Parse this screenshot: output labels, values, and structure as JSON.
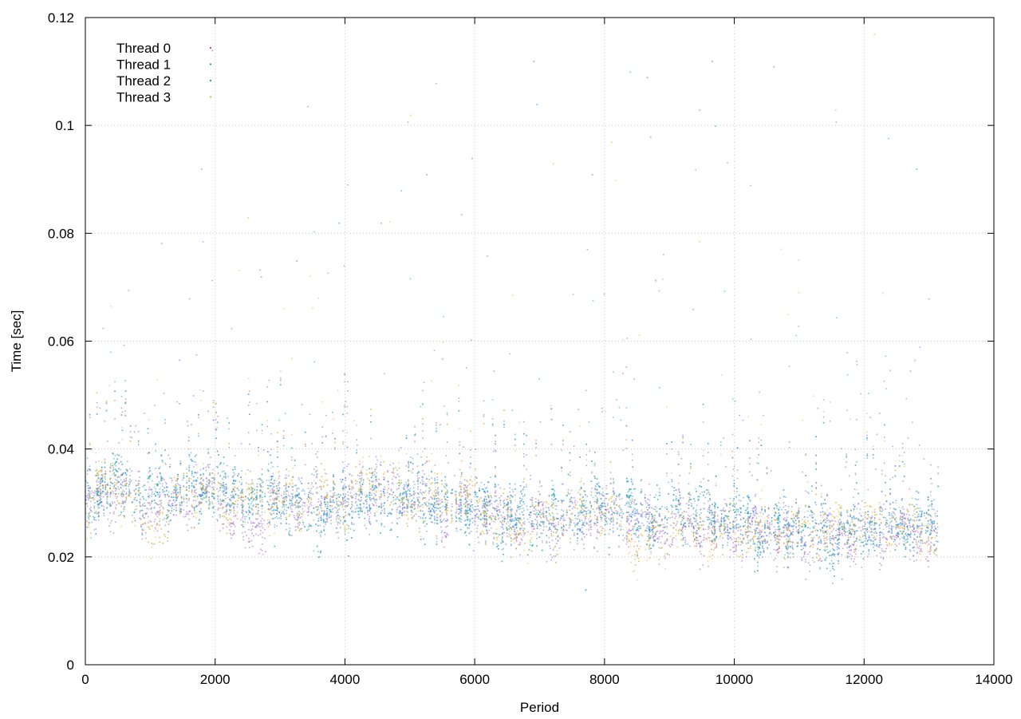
{
  "chart_data": {
    "type": "scatter",
    "title": "",
    "xlabel": "Period",
    "ylabel": "Time [sec]",
    "xlim": [
      0,
      14000
    ],
    "ylim": [
      0,
      0.12
    ],
    "x_ticks": [
      0,
      2000,
      4000,
      6000,
      8000,
      10000,
      12000,
      14000
    ],
    "y_ticks": [
      0,
      0.02,
      0.04,
      0.06,
      0.08,
      0.1,
      0.12
    ],
    "x_tick_labels": [
      "0",
      "2000",
      "4000",
      "6000",
      "8000",
      "10000",
      "12000",
      "14000"
    ],
    "y_tick_labels": [
      "0",
      "0.02",
      "0.04",
      "0.06",
      "0.08",
      "0.1",
      "0.12"
    ],
    "grid": true,
    "legend_position": "top-left",
    "x_range_of_data": [
      0,
      13150
    ],
    "series": [
      {
        "name": "Thread 0",
        "color": "#9457d4",
        "approx_points": [
          [
            0,
            0.03
          ],
          [
            500,
            0.033
          ],
          [
            1000,
            0.03
          ],
          [
            1500,
            0.031
          ],
          [
            2000,
            0.033
          ],
          [
            2500,
            0.024
          ],
          [
            3000,
            0.031
          ],
          [
            3500,
            0.03
          ],
          [
            4000,
            0.031
          ],
          [
            4500,
            0.032
          ],
          [
            5000,
            0.033
          ],
          [
            5500,
            0.029
          ],
          [
            6000,
            0.029
          ],
          [
            6500,
            0.027
          ],
          [
            7000,
            0.027
          ],
          [
            7500,
            0.026
          ],
          [
            8000,
            0.028
          ],
          [
            8500,
            0.027
          ],
          [
            9000,
            0.026
          ],
          [
            9500,
            0.026
          ],
          [
            10000,
            0.025
          ],
          [
            10500,
            0.025
          ],
          [
            11000,
            0.023
          ],
          [
            11500,
            0.024
          ],
          [
            12000,
            0.024
          ],
          [
            12500,
            0.025
          ],
          [
            13000,
            0.024
          ]
        ],
        "outliers": [
          [
            5250,
            0.091
          ],
          [
            6900,
            0.112
          ],
          [
            9650,
            0.112
          ],
          [
            8650,
            0.109
          ],
          [
            10600,
            0.111
          ],
          [
            7800,
            0.091
          ],
          [
            3250,
            0.075
          ],
          [
            2700,
            0.072
          ],
          [
            1950,
            0.114
          ]
        ]
      },
      {
        "name": "Thread 1",
        "color": "#2f8fd8",
        "approx_points": [
          [
            0,
            0.031
          ],
          [
            500,
            0.034
          ],
          [
            1000,
            0.032
          ],
          [
            1500,
            0.033
          ],
          [
            2000,
            0.033
          ],
          [
            2500,
            0.031
          ],
          [
            3000,
            0.032
          ],
          [
            3500,
            0.031
          ],
          [
            4000,
            0.031
          ],
          [
            4500,
            0.031
          ],
          [
            5000,
            0.032
          ],
          [
            5500,
            0.03
          ],
          [
            6000,
            0.03
          ],
          [
            6500,
            0.029
          ],
          [
            7000,
            0.029
          ],
          [
            7500,
            0.028
          ],
          [
            8000,
            0.029
          ],
          [
            8500,
            0.028
          ],
          [
            9000,
            0.028
          ],
          [
            9500,
            0.028
          ],
          [
            10000,
            0.027
          ],
          [
            10500,
            0.026
          ],
          [
            11000,
            0.026
          ],
          [
            11500,
            0.025
          ],
          [
            12000,
            0.025
          ],
          [
            12500,
            0.026
          ],
          [
            13000,
            0.026
          ]
        ],
        "outliers": [
          [
            6950,
            0.104
          ],
          [
            8700,
            0.098
          ],
          [
            3900,
            0.082
          ],
          [
            5950,
            0.094
          ],
          [
            12800,
            0.092
          ],
          [
            7700,
            0.014
          ]
        ]
      },
      {
        "name": "Thread 2",
        "color": "#1fa3b8",
        "approx_points": [
          [
            0,
            0.03
          ],
          [
            500,
            0.034
          ],
          [
            1000,
            0.031
          ],
          [
            1500,
            0.031
          ],
          [
            2000,
            0.034
          ],
          [
            2500,
            0.03
          ],
          [
            3000,
            0.031
          ],
          [
            3500,
            0.026
          ],
          [
            4000,
            0.029
          ],
          [
            4500,
            0.03
          ],
          [
            5000,
            0.031
          ],
          [
            5500,
            0.029
          ],
          [
            6000,
            0.029
          ],
          [
            6500,
            0.026
          ],
          [
            7000,
            0.027
          ],
          [
            7500,
            0.027
          ],
          [
            8000,
            0.031
          ],
          [
            8500,
            0.027
          ],
          [
            9000,
            0.03
          ],
          [
            9500,
            0.03
          ],
          [
            10000,
            0.027
          ],
          [
            10500,
            0.023
          ],
          [
            11000,
            0.026
          ],
          [
            11500,
            0.022
          ],
          [
            12000,
            0.025
          ],
          [
            12500,
            0.026
          ],
          [
            13000,
            0.026
          ]
        ],
        "outliers": [
          [
            7700,
            0.014
          ],
          [
            11650,
            0.016
          ],
          [
            4550,
            0.082
          ],
          [
            9700,
            0.1
          ]
        ]
      },
      {
        "name": "Thread 3",
        "color": "#e0b43a",
        "approx_points": [
          [
            0,
            0.03
          ],
          [
            500,
            0.034
          ],
          [
            1000,
            0.025
          ],
          [
            1500,
            0.032
          ],
          [
            2000,
            0.032
          ],
          [
            2500,
            0.03
          ],
          [
            3000,
            0.031
          ],
          [
            3500,
            0.031
          ],
          [
            4000,
            0.031
          ],
          [
            4500,
            0.035
          ],
          [
            5000,
            0.031
          ],
          [
            5500,
            0.031
          ],
          [
            6000,
            0.031
          ],
          [
            6500,
            0.025
          ],
          [
            7000,
            0.027
          ],
          [
            7500,
            0.027
          ],
          [
            8000,
            0.03
          ],
          [
            8500,
            0.022
          ],
          [
            9000,
            0.026
          ],
          [
            9500,
            0.025
          ],
          [
            10000,
            0.025
          ],
          [
            10500,
            0.024
          ],
          [
            11000,
            0.025
          ],
          [
            11500,
            0.025
          ],
          [
            12000,
            0.026
          ],
          [
            12500,
            0.026
          ],
          [
            13000,
            0.025
          ]
        ],
        "outliers": [
          [
            5000,
            0.102
          ],
          [
            12150,
            0.117
          ],
          [
            2500,
            0.083
          ],
          [
            8100,
            0.097
          ],
          [
            11550,
            0.103
          ],
          [
            7200,
            0.093
          ]
        ]
      }
    ]
  }
}
